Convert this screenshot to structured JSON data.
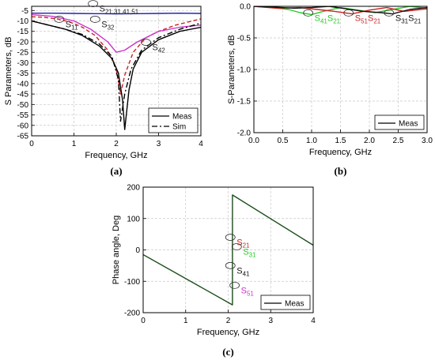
{
  "chart_data": [
    {
      "type": "line",
      "panel_label": "(a)",
      "xlabel": "Frequency, GHz",
      "ylabel": "S Parameters, dB",
      "xlim": [
        0,
        4
      ],
      "ylim": [
        -65,
        -3
      ],
      "xticks": [
        0,
        1,
        2,
        3,
        4
      ],
      "yticks": [
        -5,
        -10,
        -15,
        -20,
        -25,
        -30,
        -35,
        -40,
        -45,
        -50,
        -55,
        -60,
        -65
      ],
      "grid": true,
      "legend_position": "bottom-right",
      "legend": [
        {
          "label": "Meas",
          "style": "solid"
        },
        {
          "label": "Sim",
          "style": "dash-dot"
        }
      ],
      "annotations": [
        {
          "text": "S21,31,41,51",
          "base": "S",
          "sub": "21,31,41,51",
          "x": 1.6,
          "y": -5.5
        },
        {
          "text": "S11",
          "base": "S",
          "sub": "11",
          "x": 0.8,
          "y": -13
        },
        {
          "text": "S32",
          "base": "S",
          "sub": "32",
          "x": 1.65,
          "y": -13
        },
        {
          "text": "S42",
          "base": "S",
          "sub": "42",
          "x": 2.85,
          "y": -24
        }
      ],
      "series": [
        {
          "color": "#2020b0",
          "style": "solid",
          "x": [
            0,
            0.5,
            1,
            1.5,
            2,
            2.5,
            3,
            3.5,
            4
          ],
          "y": [
            -6.3,
            -6.3,
            -6.4,
            -6.5,
            -6.6,
            -6.5,
            -6.4,
            -6.3,
            -6.4
          ]
        },
        {
          "color": "#cc2222",
          "style": "dash",
          "x": [
            0,
            0.3,
            0.6,
            0.9,
            1.2,
            1.5,
            1.8,
            2.0,
            2.1,
            2.2,
            2.4,
            2.7,
            3.0,
            3.4,
            4.0
          ],
          "y": [
            -8,
            -8.3,
            -9,
            -10.5,
            -13,
            -17,
            -24,
            -33,
            -45,
            -36,
            -25,
            -18,
            -15,
            -12,
            -9
          ]
        },
        {
          "color": "#cc33cc",
          "style": "solid",
          "x": [
            0,
            0.5,
            1.0,
            1.4,
            1.8,
            2.0,
            2.2,
            2.5,
            3.0,
            3.5,
            4.0
          ],
          "y": [
            -7,
            -7.8,
            -10,
            -14,
            -20,
            -25,
            -24,
            -20,
            -15,
            -13,
            -12
          ]
        },
        {
          "color": "#000000",
          "style": "solid",
          "x": [
            0,
            0.4,
            0.8,
            1.2,
            1.6,
            1.9,
            2.05,
            2.15,
            2.2,
            2.3,
            2.4,
            2.6,
            3.0,
            3.5,
            4.0
          ],
          "y": [
            -10,
            -12,
            -14,
            -17,
            -22,
            -28,
            -35,
            -48,
            -62,
            -43,
            -33,
            -25,
            -19,
            -15,
            -13
          ]
        },
        {
          "color": "#000000",
          "style": "dash-dot",
          "x": [
            0,
            0.4,
            0.8,
            1.2,
            1.6,
            1.9,
            2.05,
            2.1,
            2.2,
            2.35,
            2.6,
            3.0,
            3.5,
            4.0
          ],
          "y": [
            -10,
            -12,
            -14,
            -16.5,
            -21,
            -27,
            -38,
            -58,
            -45,
            -33,
            -24,
            -18,
            -14,
            -11
          ]
        }
      ]
    },
    {
      "type": "line",
      "panel_label": "(b)",
      "xlabel": "Frequency, GHz",
      "ylabel": "S-Parameters, dB",
      "xlim": [
        0,
        3
      ],
      "ylim": [
        -2,
        0
      ],
      "xticks": [
        0.0,
        0.5,
        1.0,
        1.5,
        2.0,
        2.5,
        3.0
      ],
      "yticks": [
        0.0,
        -0.5,
        -1.0,
        -1.5,
        -2.0
      ],
      "grid": true,
      "legend_position": "bottom-right",
      "legend": [
        {
          "label": "Meas",
          "style": "solid"
        }
      ],
      "annotations": [
        {
          "text": "S41S21",
          "parts": [
            {
              "base": "S",
              "sub": "41",
              "color": "#22cc22"
            },
            {
              "base": "S",
              "sub": "21",
              "color": "#22cc22"
            }
          ],
          "x": 1.05,
          "y": -0.23
        },
        {
          "text": "S51S21",
          "parts": [
            {
              "base": "S",
              "sub": "51",
              "color": "#cc2222"
            },
            {
              "base": "S",
              "sub": "21",
              "color": "#cc2222"
            }
          ],
          "x": 1.75,
          "y": -0.23
        },
        {
          "text": "S31S21",
          "parts": [
            {
              "base": "S",
              "sub": "31",
              "color": "#111111"
            },
            {
              "base": "S",
              "sub": "21",
              "color": "#111111"
            }
          ],
          "x": 2.45,
          "y": -0.23
        }
      ],
      "series": [
        {
          "color": "#22cc22",
          "style": "solid",
          "x": [
            0,
            0.3,
            0.6,
            0.8,
            1.0,
            1.2,
            1.5,
            1.8,
            2.1,
            2.4,
            2.7,
            3.0
          ],
          "y": [
            0,
            -0.02,
            -0.05,
            -0.1,
            -0.13,
            -0.08,
            -0.02,
            -0.06,
            -0.1,
            -0.05,
            0,
            -0.03
          ]
        },
        {
          "color": "#cc2222",
          "style": "solid",
          "x": [
            0,
            0.4,
            0.8,
            1.1,
            1.4,
            1.7,
            2.0,
            2.3,
            2.6,
            3.0
          ],
          "y": [
            0,
            -0.03,
            -0.02,
            -0.05,
            -0.08,
            -0.12,
            -0.06,
            -0.02,
            -0.08,
            -0.04
          ]
        },
        {
          "color": "#111111",
          "style": "solid",
          "x": [
            0,
            0.3,
            0.7,
            1.0,
            1.3,
            1.6,
            1.9,
            2.2,
            2.4,
            2.7,
            3.0
          ],
          "y": [
            0,
            -0.01,
            -0.03,
            -0.02,
            0,
            -0.04,
            -0.08,
            -0.1,
            -0.12,
            -0.05,
            -0.02
          ]
        }
      ]
    },
    {
      "type": "line",
      "panel_label": "(c)",
      "xlabel": "Frequency, GHz",
      "ylabel": "Phase angle, Deg",
      "xlim": [
        0,
        4
      ],
      "ylim": [
        -200,
        200
      ],
      "xticks": [
        0,
        1,
        2,
        3,
        4
      ],
      "yticks": [
        200,
        100,
        0,
        -100,
        -200
      ],
      "grid": true,
      "legend_position": "bottom-right",
      "legend": [
        {
          "label": "Meas",
          "style": "solid"
        }
      ],
      "annotations": [
        {
          "text": "S21",
          "base": "S",
          "sub": "21",
          "color": "#cc2222",
          "x": 2.2,
          "y": 15
        },
        {
          "text": "S31",
          "base": "S",
          "sub": "31",
          "color": "#22cc22",
          "x": 2.35,
          "y": -15
        },
        {
          "text": "S41",
          "base": "S",
          "sub": "41",
          "color": "#111111",
          "x": 2.2,
          "y": -75
        },
        {
          "text": "S51",
          "base": "S",
          "sub": "51",
          "color": "#cc33cc",
          "x": 2.3,
          "y": -138
        }
      ],
      "series": [
        {
          "color": "#1a4d1a",
          "style": "solid",
          "x": [
            0,
            2.1,
            2.1,
            4.0
          ],
          "y": [
            -15,
            -175,
            175,
            15
          ]
        }
      ]
    }
  ]
}
